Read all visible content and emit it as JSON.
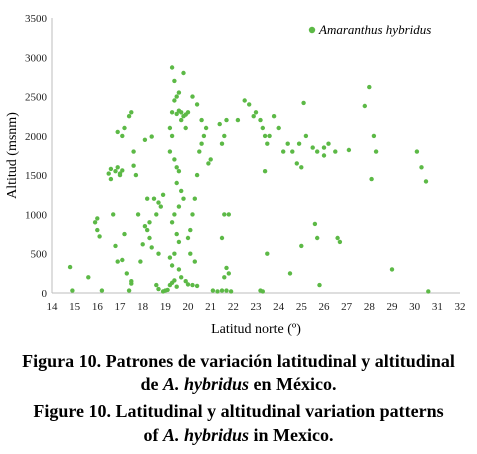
{
  "chart_data": {
    "type": "scatter",
    "xlabel": "Latitud norte (º)",
    "ylabel": "Altitud (msnm)",
    "xlim": [
      14,
      32
    ],
    "ylim": [
      0,
      3500
    ],
    "xticks": [
      14,
      15,
      16,
      17,
      18,
      19,
      20,
      21,
      22,
      23,
      24,
      25,
      26,
      27,
      28,
      29,
      30,
      31,
      32
    ],
    "yticks": [
      0,
      500,
      1000,
      1500,
      2000,
      2500,
      3000,
      3500
    ],
    "grid": false,
    "legend_position": "top-right",
    "series": [
      {
        "name": "Amaranthus hybridus",
        "color": "#5cb946",
        "points": [
          [
            14.8,
            330
          ],
          [
            14.9,
            30
          ],
          [
            15.6,
            200
          ],
          [
            15.9,
            900
          ],
          [
            16.0,
            800
          ],
          [
            16.0,
            950
          ],
          [
            16.1,
            720
          ],
          [
            16.2,
            30
          ],
          [
            16.5,
            1520
          ],
          [
            16.6,
            1580
          ],
          [
            16.6,
            1450
          ],
          [
            16.8,
            1550
          ],
          [
            16.9,
            1600
          ],
          [
            17.0,
            1520
          ],
          [
            17.0,
            1500
          ],
          [
            17.1,
            1560
          ],
          [
            16.9,
            2050
          ],
          [
            17.1,
            2000
          ],
          [
            17.2,
            2100
          ],
          [
            16.7,
            1000
          ],
          [
            16.8,
            600
          ],
          [
            16.9,
            400
          ],
          [
            17.1,
            420
          ],
          [
            17.2,
            750
          ],
          [
            17.3,
            250
          ],
          [
            17.4,
            30
          ],
          [
            17.5,
            150
          ],
          [
            17.5,
            120
          ],
          [
            17.6,
            1620
          ],
          [
            17.4,
            2250
          ],
          [
            17.5,
            2300
          ],
          [
            17.6,
            1800
          ],
          [
            17.7,
            1500
          ],
          [
            17.8,
            1000
          ],
          [
            17.9,
            400
          ],
          [
            18.0,
            620
          ],
          [
            18.1,
            850
          ],
          [
            18.2,
            800
          ],
          [
            18.3,
            700
          ],
          [
            18.4,
            580
          ],
          [
            18.3,
            900
          ],
          [
            18.2,
            1200
          ],
          [
            18.1,
            1950
          ],
          [
            18.4,
            1990
          ],
          [
            18.5,
            1200
          ],
          [
            18.6,
            1000
          ],
          [
            18.7,
            1150
          ],
          [
            18.8,
            1100
          ],
          [
            18.9,
            1250
          ],
          [
            18.7,
            500
          ],
          [
            18.6,
            100
          ],
          [
            18.7,
            50
          ],
          [
            18.9,
            20
          ],
          [
            19.0,
            30
          ],
          [
            19.1,
            40
          ],
          [
            19.2,
            100
          ],
          [
            19.3,
            130
          ],
          [
            19.4,
            160
          ],
          [
            19.5,
            80
          ],
          [
            19.3,
            2870
          ],
          [
            19.4,
            2700
          ],
          [
            19.5,
            2500
          ],
          [
            19.3,
            2300
          ],
          [
            19.6,
            2550
          ],
          [
            19.8,
            2800
          ],
          [
            19.4,
            2450
          ],
          [
            19.5,
            2280
          ],
          [
            19.6,
            2320
          ],
          [
            19.7,
            2300
          ],
          [
            19.8,
            2250
          ],
          [
            19.9,
            2270
          ],
          [
            20.0,
            2300
          ],
          [
            19.7,
            2200
          ],
          [
            19.9,
            2100
          ],
          [
            19.2,
            2100
          ],
          [
            19.3,
            2000
          ],
          [
            19.2,
            1800
          ],
          [
            19.4,
            1700
          ],
          [
            19.5,
            1600
          ],
          [
            19.6,
            1550
          ],
          [
            19.5,
            1400
          ],
          [
            19.7,
            1300
          ],
          [
            19.6,
            1100
          ],
          [
            19.8,
            1200
          ],
          [
            19.4,
            1000
          ],
          [
            19.3,
            900
          ],
          [
            19.5,
            750
          ],
          [
            19.6,
            650
          ],
          [
            19.4,
            500
          ],
          [
            19.2,
            450
          ],
          [
            19.3,
            350
          ],
          [
            19.6,
            300
          ],
          [
            19.7,
            200
          ],
          [
            19.9,
            150
          ],
          [
            20.0,
            110
          ],
          [
            20.2,
            100
          ],
          [
            20.4,
            90
          ],
          [
            20.1,
            500
          ],
          [
            20.3,
            400
          ],
          [
            20.0,
            700
          ],
          [
            20.1,
            800
          ],
          [
            20.2,
            1000
          ],
          [
            20.3,
            1200
          ],
          [
            20.4,
            1500
          ],
          [
            20.5,
            1800
          ],
          [
            20.6,
            1900
          ],
          [
            20.7,
            2000
          ],
          [
            20.8,
            2100
          ],
          [
            20.6,
            2200
          ],
          [
            20.4,
            2400
          ],
          [
            20.2,
            2500
          ],
          [
            20.9,
            1650
          ],
          [
            21.0,
            1700
          ],
          [
            21.1,
            30
          ],
          [
            21.3,
            20
          ],
          [
            21.5,
            30
          ],
          [
            21.7,
            30
          ],
          [
            21.9,
            20
          ],
          [
            21.6,
            200
          ],
          [
            21.8,
            250
          ],
          [
            21.7,
            320
          ],
          [
            21.5,
            700
          ],
          [
            21.6,
            1000
          ],
          [
            21.8,
            1000
          ],
          [
            21.5,
            1900
          ],
          [
            21.6,
            2000
          ],
          [
            21.7,
            2200
          ],
          [
            21.4,
            2150
          ],
          [
            22.2,
            2200
          ],
          [
            22.5,
            2450
          ],
          [
            22.7,
            2400
          ],
          [
            22.9,
            2250
          ],
          [
            23.0,
            2300
          ],
          [
            23.2,
            2200
          ],
          [
            23.3,
            2100
          ],
          [
            23.4,
            2000
          ],
          [
            23.5,
            1900
          ],
          [
            23.6,
            2000
          ],
          [
            23.8,
            2250
          ],
          [
            24.0,
            2100
          ],
          [
            24.2,
            1800
          ],
          [
            24.4,
            1900
          ],
          [
            24.6,
            1800
          ],
          [
            24.8,
            1650
          ],
          [
            25.0,
            1600
          ],
          [
            24.9,
            1900
          ],
          [
            25.2,
            2000
          ],
          [
            25.5,
            1850
          ],
          [
            25.7,
            1800
          ],
          [
            26.0,
            1750
          ],
          [
            26.5,
            1800
          ],
          [
            26.0,
            1850
          ],
          [
            23.4,
            1550
          ],
          [
            23.5,
            500
          ],
          [
            23.2,
            30
          ],
          [
            23.3,
            20
          ],
          [
            24.5,
            250
          ],
          [
            25.0,
            600
          ],
          [
            25.1,
            2420
          ],
          [
            25.6,
            880
          ],
          [
            25.7,
            700
          ],
          [
            25.8,
            100
          ],
          [
            26.2,
            1900
          ],
          [
            26.6,
            700
          ],
          [
            26.7,
            650
          ],
          [
            27.1,
            1820
          ],
          [
            27.8,
            2380
          ],
          [
            28.0,
            2620
          ],
          [
            28.1,
            1450
          ],
          [
            28.2,
            2000
          ],
          [
            28.3,
            1800
          ],
          [
            29.0,
            300
          ],
          [
            30.1,
            1800
          ],
          [
            30.3,
            1600
          ],
          [
            30.5,
            1420
          ],
          [
            30.6,
            20
          ]
        ]
      }
    ]
  },
  "caption": {
    "line1": "Figura 10. Patrones de variación latitudinal y altitudinal",
    "line2_pre": "de ",
    "line2_italic": "A. hybridus",
    "line2_post": " en México.",
    "line3": "Figure 10. Latitudinal y altitudinal variation patterns",
    "line4_pre": "of ",
    "line4_italic": "A. hybridus",
    "line4_post": " in Mexico."
  }
}
